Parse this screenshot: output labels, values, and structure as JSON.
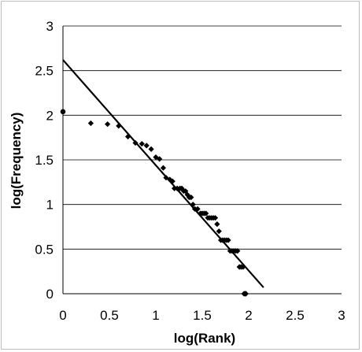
{
  "chart_data": {
    "type": "scatter",
    "title": "",
    "xlabel": "log(Rank)",
    "ylabel": "log(Frequency)",
    "xlim": [
      0,
      3
    ],
    "ylim": [
      0,
      3
    ],
    "x_ticks": [
      "0",
      "0.5",
      "1",
      "1.5",
      "2",
      "2.5",
      "3"
    ],
    "y_ticks": [
      "0",
      "0.5",
      "1",
      "1.5",
      "2",
      "2.5",
      "3"
    ],
    "grid": "horizontal",
    "legend": "none",
    "colors": {
      "points": "#000000",
      "trendline": "#000000",
      "grid": "#000000",
      "frame": "#bdbdbd"
    },
    "series": [
      {
        "marker": "diamond",
        "x": [
          0.0,
          0.3,
          0.48,
          0.6,
          0.7,
          0.78,
          0.85,
          0.9,
          0.95,
          1.0,
          1.04,
          1.08,
          1.11,
          1.15,
          1.18,
          1.2,
          1.23,
          1.26,
          1.28,
          1.3,
          1.32,
          1.34,
          1.36,
          1.38,
          1.4,
          1.42,
          1.45,
          1.48,
          1.5,
          1.52,
          1.54,
          1.56,
          1.58,
          1.6,
          1.62,
          1.64,
          1.66,
          1.68,
          1.7,
          1.72,
          1.74,
          1.76,
          1.78,
          1.8,
          1.82,
          1.84,
          1.86,
          1.88,
          1.9,
          1.92,
          1.94,
          1.95,
          1.96,
          1.97
        ],
        "y": [
          2.04,
          1.91,
          1.9,
          1.88,
          1.76,
          1.69,
          1.68,
          1.66,
          1.62,
          1.53,
          1.51,
          1.41,
          1.3,
          1.28,
          1.26,
          1.18,
          1.18,
          1.18,
          1.18,
          1.15,
          1.15,
          1.11,
          1.08,
          1.08,
          1.0,
          0.95,
          0.95,
          0.9,
          0.9,
          0.9,
          0.9,
          0.85,
          0.85,
          0.85,
          0.85,
          0.85,
          0.78,
          0.7,
          0.6,
          0.6,
          0.6,
          0.6,
          0.6,
          0.48,
          0.48,
          0.48,
          0.48,
          0.48,
          0.3,
          0.3,
          0.3,
          0.0,
          0.0,
          0.0
        ]
      },
      {
        "type": "line",
        "x": [
          0.0,
          2.16
        ],
        "y": [
          2.62,
          0.07
        ]
      }
    ]
  }
}
